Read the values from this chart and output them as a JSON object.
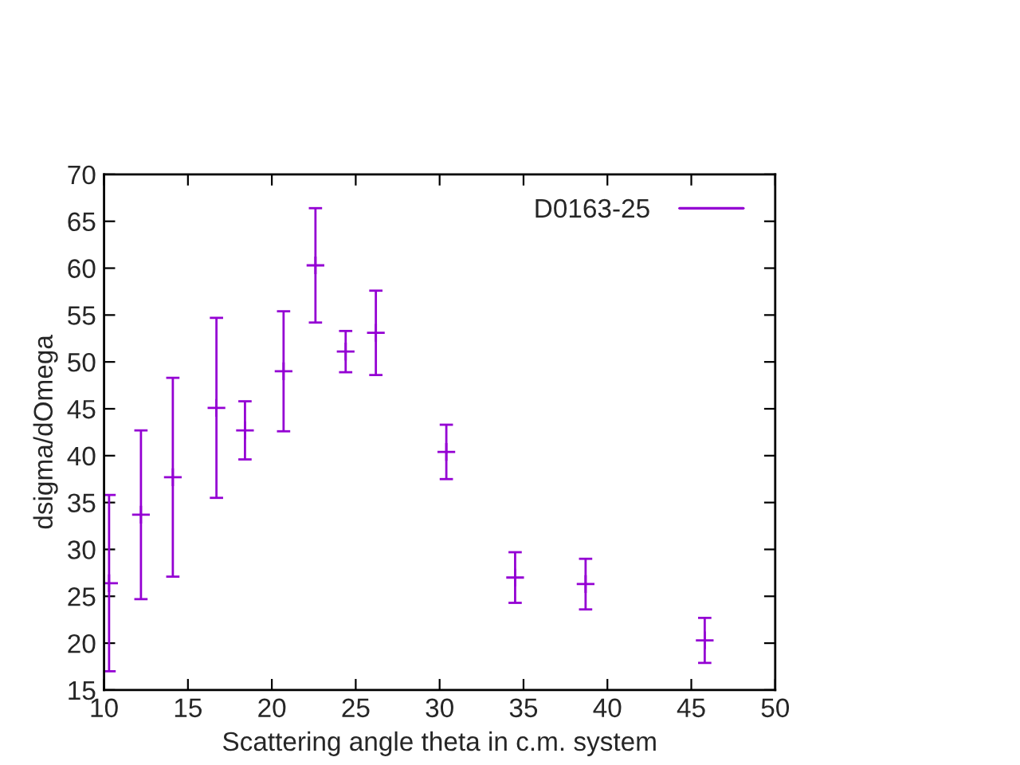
{
  "chart_data": {
    "type": "scatter",
    "xlabel": "Scattering angle theta in c.m. system",
    "ylabel": "dsigma/dOmega",
    "x": [
      10.3,
      12.2,
      14.1,
      16.7,
      18.4,
      20.7,
      22.6,
      24.4,
      26.2,
      30.4,
      34.5,
      38.7,
      45.8
    ],
    "series": [
      {
        "name": "D0163-25",
        "color": "#9400d3",
        "values": [
          26.4,
          33.7,
          37.7,
          45.1,
          42.7,
          49.0,
          60.3,
          51.1,
          53.1,
          40.4,
          27.0,
          26.3,
          20.3
        ],
        "errors": [
          9.4,
          9.0,
          10.6,
          9.6,
          3.1,
          6.4,
          6.1,
          2.2,
          4.5,
          2.9,
          2.7,
          2.7,
          2.4
        ]
      }
    ],
    "xlim": [
      10,
      50
    ],
    "xticks": [
      10,
      15,
      20,
      25,
      30,
      35,
      40,
      45,
      50
    ],
    "ylim": [
      15,
      70
    ],
    "yticks": [
      15,
      20,
      25,
      30,
      35,
      40,
      45,
      50,
      55,
      60,
      65,
      70
    ],
    "marker": "cross",
    "grid": false,
    "legend": "top right"
  }
}
